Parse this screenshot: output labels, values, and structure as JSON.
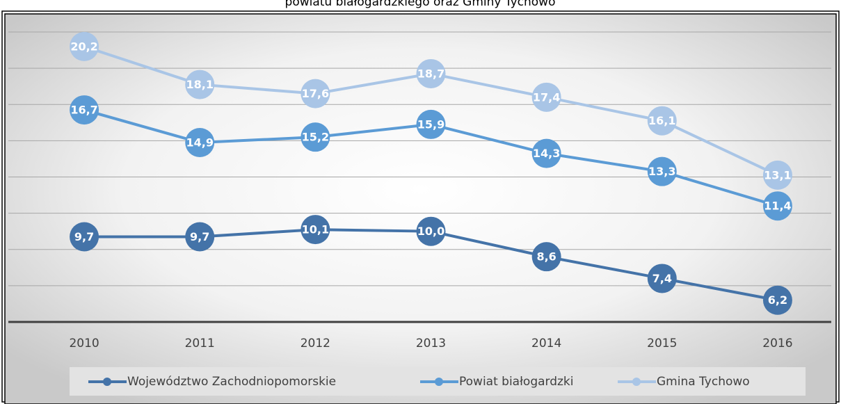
{
  "chart_data": {
    "type": "line",
    "title": "powiatu białogardzkiego oraz Gminy Tychowo",
    "categories": [
      "2010",
      "2011",
      "2012",
      "2013",
      "2014",
      "2015",
      "2016"
    ],
    "series": [
      {
        "name": "Województwo Zachodniopomorskie",
        "color": "#4473a8",
        "values": [
          9.7,
          9.7,
          10.1,
          10.0,
          8.6,
          7.4,
          6.2
        ],
        "value_labels": [
          "9,7",
          "9,7",
          "10,1",
          "10,0",
          "8,6",
          "7,4",
          "6,2"
        ]
      },
      {
        "name": "Powiat białogardzki",
        "color": "#5b9bd5",
        "values": [
          16.7,
          14.9,
          15.2,
          15.9,
          14.3,
          13.3,
          11.4
        ],
        "value_labels": [
          "16,7",
          "14,9",
          "15,2",
          "15,9",
          "14,3",
          "13,3",
          "11,4"
        ]
      },
      {
        "name": "Gmina Tychowo",
        "color": "#a9c5e6",
        "values": [
          20.2,
          18.1,
          17.6,
          18.7,
          17.4,
          16.1,
          13.1
        ],
        "value_labels": [
          "20,2",
          "18,1",
          "17,6",
          "18,7",
          "17,4",
          "16,1",
          "13,1"
        ]
      }
    ],
    "ylim": [
      5,
      21
    ],
    "yticks": [
      5,
      7,
      9,
      11,
      13,
      15,
      17,
      19,
      21
    ],
    "grid": true,
    "legend": "bottom"
  }
}
